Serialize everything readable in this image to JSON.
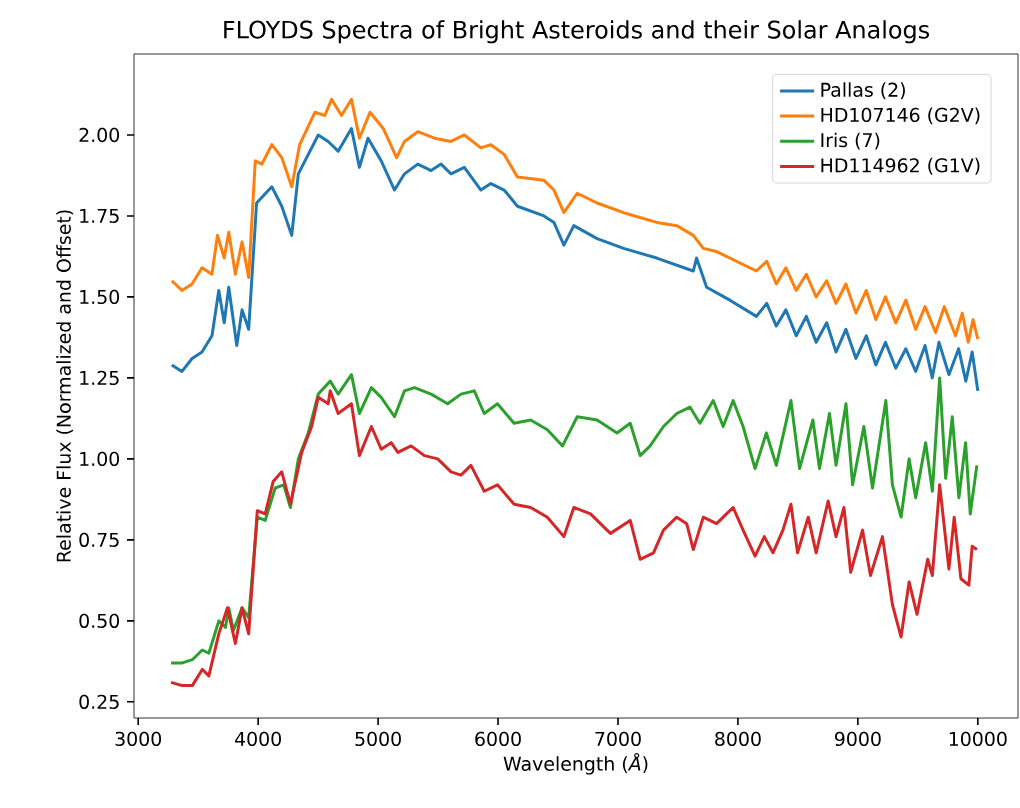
{
  "chart_data": {
    "type": "line",
    "title": "FLOYDS Spectra of Bright Asteroids and their Solar Analogs",
    "xlabel": "Wavelength (*Å*)",
    "ylabel": "Relative Flux (Normalized and Offset)",
    "xlim": [
      2965,
      10335
    ],
    "ylim": [
      0.2,
      2.25
    ],
    "xticks": [
      3000,
      4000,
      5000,
      6000,
      7000,
      8000,
      9000,
      10000
    ],
    "yticks": [
      {
        "value": 0.25,
        "label": "0.25"
      },
      {
        "value": 0.5,
        "label": "0.50"
      },
      {
        "value": 0.75,
        "label": "0.75"
      },
      {
        "value": 1.0,
        "label": "1.00"
      },
      {
        "value": 1.25,
        "label": "1.25"
      },
      {
        "value": 1.5,
        "label": "1.50"
      },
      {
        "value": 1.75,
        "label": "1.75"
      },
      {
        "value": 2.0,
        "label": "2.00"
      }
    ],
    "legend": "top right",
    "grid": false,
    "series": [
      {
        "name": "Pallas (2)",
        "color": "#1f77b4",
        "x": [
          3280,
          3365,
          3449,
          3532,
          3615,
          3672,
          3717,
          3755,
          3822,
          3866,
          3921,
          3987,
          4114,
          4197,
          4280,
          4335,
          4501,
          4584,
          4667,
          4778,
          4844,
          4916,
          5026,
          5137,
          5220,
          5331,
          5442,
          5525,
          5608,
          5719,
          5857,
          5940,
          6051,
          6162,
          6383,
          6466,
          6549,
          6632,
          6826,
          7047,
          7323,
          7628,
          7655,
          7739,
          7933,
          8154,
          8240,
          8320,
          8400,
          8486,
          8570,
          8652,
          8740,
          8818,
          8900,
          8984,
          9070,
          9150,
          9230,
          9316,
          9400,
          9482,
          9560,
          9620,
          9676,
          9759,
          9840,
          9900,
          9953,
          10000
        ],
        "values": [
          1.29,
          1.27,
          1.31,
          1.33,
          1.38,
          1.52,
          1.42,
          1.53,
          1.35,
          1.46,
          1.4,
          1.79,
          1.84,
          1.78,
          1.69,
          1.88,
          2.0,
          1.98,
          1.95,
          2.02,
          1.9,
          1.99,
          1.92,
          1.83,
          1.88,
          1.91,
          1.89,
          1.91,
          1.88,
          1.9,
          1.83,
          1.85,
          1.83,
          1.78,
          1.75,
          1.73,
          1.66,
          1.72,
          1.68,
          1.65,
          1.62,
          1.58,
          1.62,
          1.53,
          1.49,
          1.44,
          1.48,
          1.41,
          1.46,
          1.38,
          1.44,
          1.36,
          1.42,
          1.33,
          1.4,
          1.31,
          1.38,
          1.29,
          1.36,
          1.28,
          1.34,
          1.27,
          1.35,
          1.25,
          1.36,
          1.26,
          1.34,
          1.24,
          1.33,
          1.21
        ]
      },
      {
        "name": "HD107146 (G2V)",
        "color": "#ff7f0e",
        "x": [
          3280,
          3365,
          3449,
          3532,
          3615,
          3661,
          3717,
          3755,
          3810,
          3866,
          3921,
          3976,
          4031,
          4114,
          4197,
          4280,
          4346,
          4473,
          4556,
          4612,
          4695,
          4778,
          4844,
          4933,
          5043,
          5154,
          5220,
          5331,
          5470,
          5608,
          5719,
          5857,
          5940,
          6051,
          6162,
          6383,
          6466,
          6549,
          6660,
          6826,
          7047,
          7323,
          7490,
          7628,
          7711,
          7822,
          7988,
          8154,
          8240,
          8320,
          8400,
          8486,
          8570,
          8652,
          8740,
          8818,
          8900,
          8984,
          9070,
          9150,
          9230,
          9316,
          9400,
          9482,
          9560,
          9648,
          9720,
          9814,
          9870,
          9920,
          9960,
          10000
        ],
        "values": [
          1.55,
          1.52,
          1.54,
          1.59,
          1.57,
          1.69,
          1.62,
          1.7,
          1.57,
          1.67,
          1.56,
          1.92,
          1.91,
          1.97,
          1.93,
          1.84,
          1.97,
          2.07,
          2.06,
          2.11,
          2.06,
          2.11,
          1.99,
          2.07,
          2.02,
          1.93,
          1.98,
          2.01,
          1.99,
          1.98,
          2.0,
          1.96,
          1.97,
          1.94,
          1.87,
          1.86,
          1.83,
          1.76,
          1.82,
          1.79,
          1.76,
          1.73,
          1.72,
          1.69,
          1.65,
          1.64,
          1.61,
          1.58,
          1.61,
          1.54,
          1.59,
          1.52,
          1.57,
          1.5,
          1.55,
          1.48,
          1.54,
          1.45,
          1.52,
          1.43,
          1.5,
          1.42,
          1.49,
          1.4,
          1.47,
          1.39,
          1.47,
          1.38,
          1.45,
          1.36,
          1.43,
          1.37
        ]
      },
      {
        "name": "Iris (7)",
        "color": "#2ca02c",
        "x": [
          3274,
          3368,
          3451,
          3534,
          3589,
          3672,
          3728,
          3755,
          3794,
          3866,
          3921,
          3993,
          4059,
          4142,
          4214,
          4269,
          4335,
          4418,
          4501,
          4601,
          4667,
          4778,
          4844,
          4944,
          5026,
          5137,
          5220,
          5303,
          5442,
          5580,
          5691,
          5802,
          5885,
          5995,
          6134,
          6272,
          6411,
          6538,
          6660,
          6826,
          6992,
          7102,
          7185,
          7268,
          7379,
          7490,
          7600,
          7683,
          7794,
          7877,
          7960,
          8043,
          8143,
          8237,
          8320,
          8442,
          8514,
          8625,
          8680,
          8763,
          8818,
          8901,
          8956,
          9050,
          9122,
          9233,
          9288,
          9360,
          9427,
          9482,
          9565,
          9621,
          9682,
          9732,
          9787,
          9842,
          9898,
          9937,
          9992
        ],
        "values": [
          0.37,
          0.37,
          0.38,
          0.41,
          0.4,
          0.5,
          0.48,
          0.54,
          0.47,
          0.54,
          0.51,
          0.82,
          0.81,
          0.91,
          0.92,
          0.85,
          1.0,
          1.08,
          1.2,
          1.24,
          1.2,
          1.26,
          1.14,
          1.22,
          1.19,
          1.13,
          1.21,
          1.22,
          1.2,
          1.17,
          1.2,
          1.21,
          1.14,
          1.17,
          1.11,
          1.12,
          1.09,
          1.04,
          1.13,
          1.12,
          1.08,
          1.11,
          1.01,
          1.04,
          1.1,
          1.14,
          1.16,
          1.11,
          1.18,
          1.1,
          1.18,
          1.1,
          0.97,
          1.08,
          0.98,
          1.18,
          0.97,
          1.12,
          0.97,
          1.14,
          0.98,
          1.17,
          0.92,
          1.1,
          0.91,
          1.18,
          0.92,
          0.82,
          1.0,
          0.88,
          1.05,
          0.9,
          1.25,
          0.94,
          1.13,
          0.88,
          1.05,
          0.83,
          0.98
        ]
      },
      {
        "name": "HD114962 (G1V)",
        "color": "#d62728",
        "x": [
          3274,
          3368,
          3451,
          3534,
          3589,
          3672,
          3744,
          3810,
          3866,
          3921,
          3993,
          4059,
          4125,
          4197,
          4269,
          4363,
          4446,
          4501,
          4584,
          4601,
          4667,
          4778,
          4844,
          4944,
          5026,
          5109,
          5165,
          5275,
          5386,
          5497,
          5608,
          5691,
          5774,
          5885,
          5995,
          6134,
          6272,
          6411,
          6549,
          6632,
          6771,
          6937,
          7102,
          7185,
          7296,
          7379,
          7490,
          7573,
          7628,
          7711,
          7822,
          7905,
          7960,
          8043,
          8143,
          8220,
          8292,
          8375,
          8442,
          8497,
          8586,
          8652,
          8752,
          8818,
          8884,
          8940,
          9039,
          9105,
          9205,
          9288,
          9360,
          9427,
          9493,
          9582,
          9621,
          9682,
          9759,
          9803,
          9859,
          9925,
          9953,
          9992
        ],
        "values": [
          0.31,
          0.3,
          0.3,
          0.35,
          0.33,
          0.46,
          0.54,
          0.43,
          0.54,
          0.46,
          0.84,
          0.83,
          0.93,
          0.96,
          0.86,
          1.02,
          1.1,
          1.19,
          1.17,
          1.21,
          1.14,
          1.17,
          1.01,
          1.1,
          1.03,
          1.05,
          1.02,
          1.04,
          1.01,
          1.0,
          0.96,
          0.95,
          0.98,
          0.9,
          0.92,
          0.86,
          0.85,
          0.82,
          0.76,
          0.85,
          0.83,
          0.77,
          0.81,
          0.69,
          0.71,
          0.78,
          0.82,
          0.8,
          0.72,
          0.82,
          0.8,
          0.83,
          0.85,
          0.78,
          0.7,
          0.76,
          0.71,
          0.78,
          0.86,
          0.71,
          0.82,
          0.71,
          0.87,
          0.76,
          0.85,
          0.65,
          0.78,
          0.64,
          0.76,
          0.55,
          0.45,
          0.62,
          0.52,
          0.69,
          0.64,
          0.92,
          0.66,
          0.82,
          0.63,
          0.61,
          0.73,
          0.72
        ]
      }
    ]
  }
}
